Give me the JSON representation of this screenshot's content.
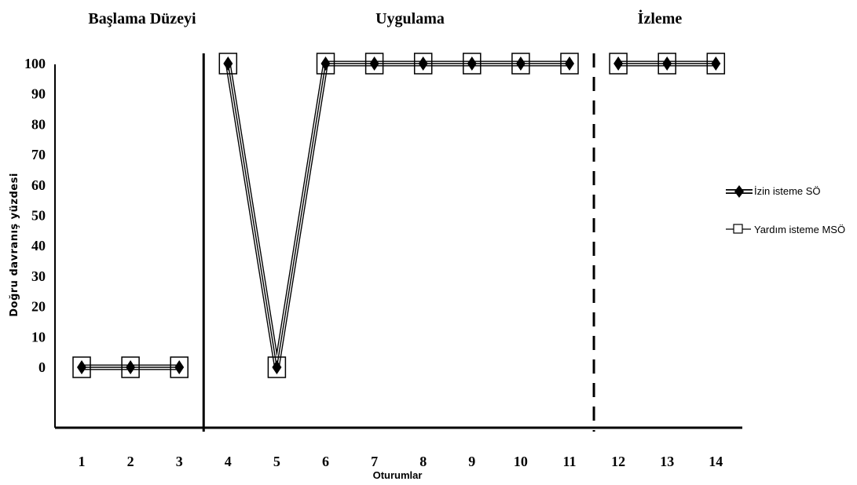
{
  "chart_data": {
    "type": "line",
    "phases": [
      {
        "label": "Başlama Düzeyi",
        "sessions": [
          1,
          3
        ]
      },
      {
        "label": "Uygulama",
        "sessions": [
          4,
          11
        ]
      },
      {
        "label": "İzleme",
        "sessions": [
          12,
          14
        ]
      }
    ],
    "x": [
      1,
      2,
      3,
      4,
      5,
      6,
      7,
      8,
      9,
      10,
      11,
      12,
      13,
      14
    ],
    "x_tick_labels": [
      "1",
      "2",
      "3",
      "4",
      "5",
      "6",
      "7",
      "8",
      "9",
      "10",
      "11",
      "12",
      "13",
      "14"
    ],
    "y_ticks": [
      0,
      10,
      20,
      30,
      40,
      50,
      60,
      70,
      80,
      90,
      100
    ],
    "ylim": [
      0,
      100
    ],
    "ylabel": "Doğru davranış yüzdesi",
    "xlabel": "Oturumlar",
    "series": [
      {
        "name": "İzin isteme SÖ",
        "marker": "filled-diamond",
        "segments": [
          [
            [
              1,
              0
            ],
            [
              2,
              0
            ],
            [
              3,
              0
            ]
          ],
          [
            [
              4,
              100
            ],
            [
              5,
              0
            ],
            [
              6,
              100
            ],
            [
              7,
              100
            ],
            [
              8,
              100
            ],
            [
              9,
              100
            ],
            [
              10,
              100
            ],
            [
              11,
              100
            ]
          ],
          [
            [
              12,
              100
            ],
            [
              13,
              100
            ],
            [
              14,
              100
            ]
          ]
        ]
      },
      {
        "name": "Yardım isteme MSÖ",
        "marker": "open-square",
        "segments": [
          [
            [
              1,
              0
            ],
            [
              2,
              0
            ],
            [
              3,
              0
            ]
          ],
          [
            [
              4,
              100
            ],
            [
              5,
              0
            ],
            [
              6,
              100
            ],
            [
              7,
              100
            ],
            [
              8,
              100
            ],
            [
              9,
              100
            ],
            [
              10,
              100
            ],
            [
              11,
              100
            ]
          ],
          [
            [
              12,
              100
            ],
            [
              13,
              100
            ],
            [
              14,
              100
            ]
          ]
        ]
      }
    ],
    "phase_dividers": [
      {
        "after_session": 3,
        "style": "solid"
      },
      {
        "after_session": 11,
        "style": "dashed"
      }
    ],
    "grid": false,
    "legend_position": "right",
    "colors": {
      "line": "#000000",
      "background": "#ffffff"
    }
  }
}
